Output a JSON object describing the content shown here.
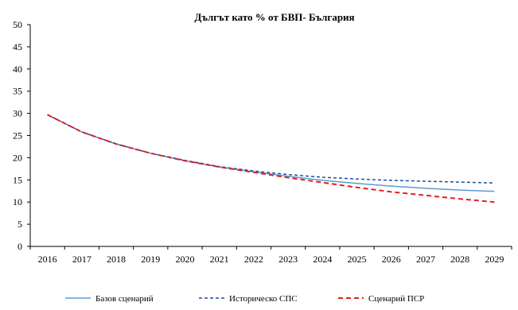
{
  "chart_data": {
    "type": "line",
    "title": "Дългът като % от БВП- България",
    "xlabel": "",
    "ylabel": "",
    "categories": [
      "2016",
      "2017",
      "2018",
      "2019",
      "2020",
      "2021",
      "2022",
      "2023",
      "2024",
      "2025",
      "2026",
      "2027",
      "2028",
      "2029"
    ],
    "ylim": [
      0,
      50
    ],
    "yticks": [
      0,
      5,
      10,
      15,
      20,
      25,
      30,
      35,
      40,
      45,
      50
    ],
    "grid": false,
    "legend_position": "bottom",
    "series": [
      {
        "name": "Базов сценарий",
        "color": "#5b9bd5",
        "style": "solid",
        "values": [
          29.7,
          25.8,
          23.1,
          21.0,
          19.3,
          17.9,
          16.8,
          15.8,
          14.9,
          14.2,
          13.6,
          13.1,
          12.7,
          12.4
        ]
      },
      {
        "name": "Историческо СПС",
        "color": "#1f4e9c",
        "style": "dashed",
        "values": [
          29.7,
          25.8,
          23.1,
          21.0,
          19.4,
          18.0,
          17.0,
          16.2,
          15.6,
          15.2,
          14.9,
          14.7,
          14.5,
          14.3
        ]
      },
      {
        "name": "Сценарий ПСР",
        "color": "#e0201e",
        "style": "dashed",
        "values": [
          29.7,
          25.8,
          23.1,
          21.0,
          19.3,
          17.9,
          16.7,
          15.5,
          14.4,
          13.3,
          12.3,
          11.5,
          10.7,
          10.0
        ]
      }
    ]
  }
}
